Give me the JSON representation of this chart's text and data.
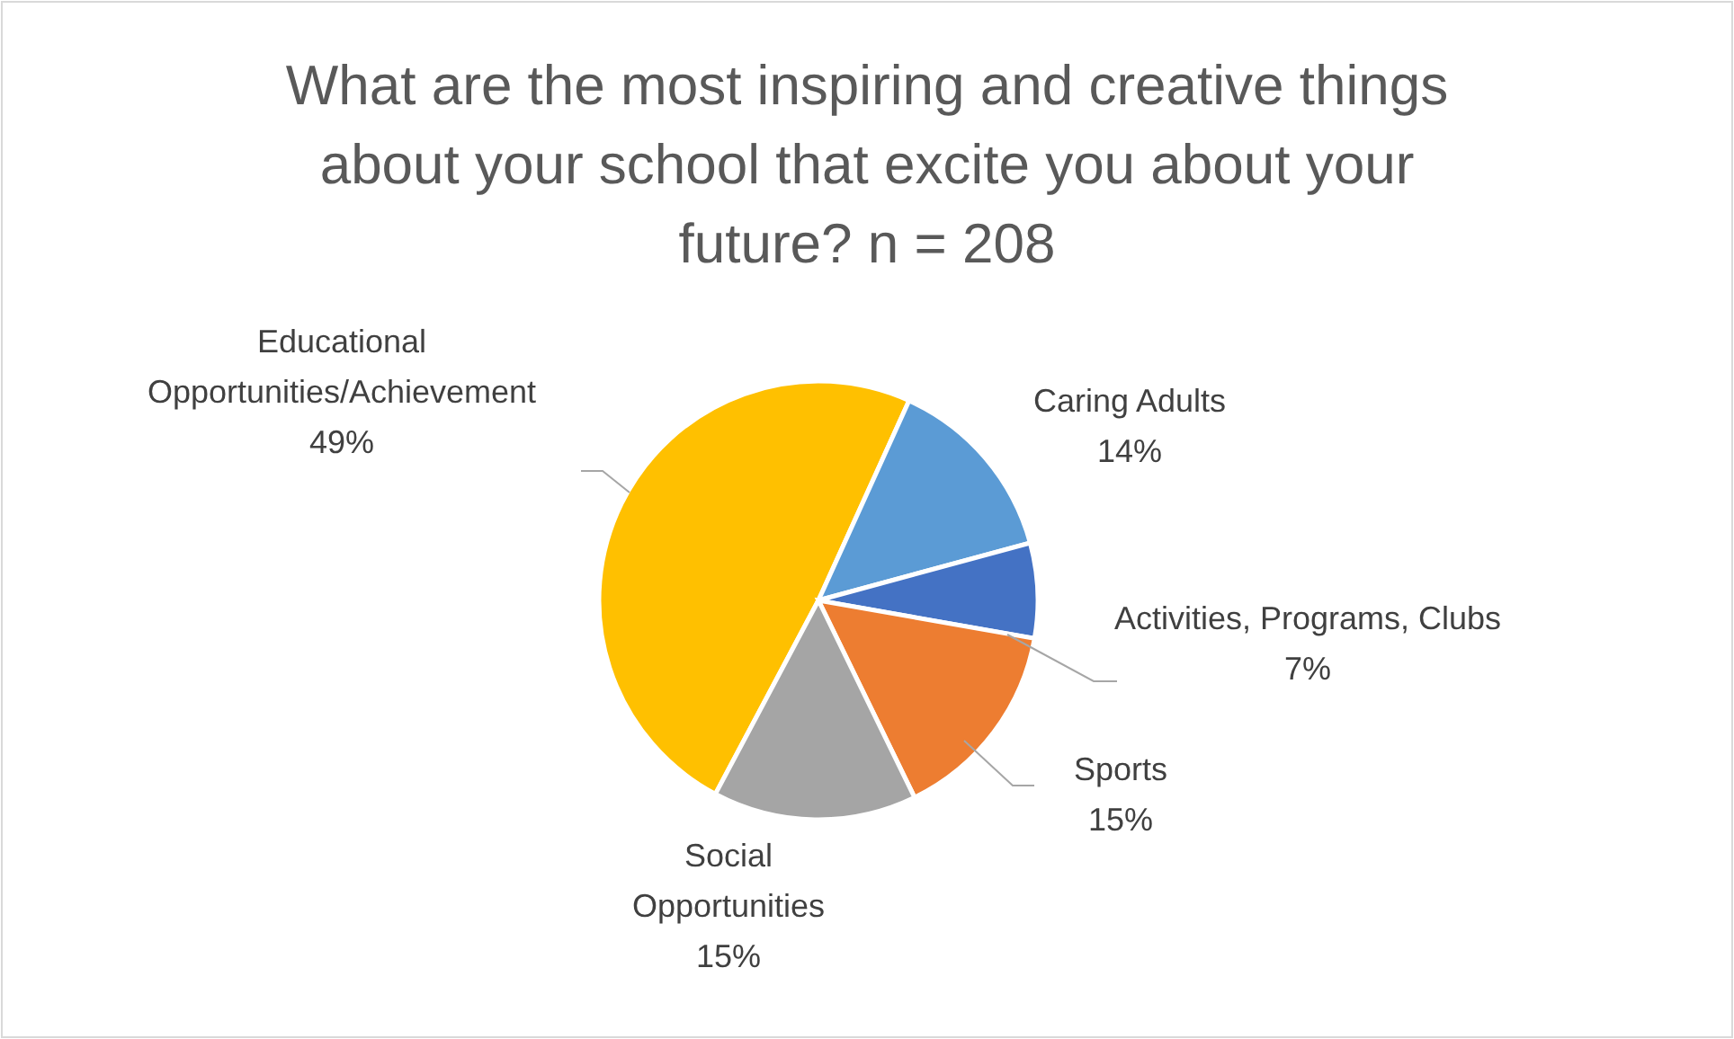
{
  "chart_data": {
    "type": "pie",
    "title": "What are the most inspiring and creative things about your school that excite you about your future? n = 208",
    "categories": [
      "Educational Opportunities/Achievement",
      "Caring Adults",
      "Activities, Programs, Clubs",
      "Sports",
      "Social Opportunities"
    ],
    "values": [
      49,
      14,
      7,
      15,
      15
    ],
    "value_labels": [
      "49%",
      "14%",
      "7%",
      "15%",
      "15%"
    ],
    "colors": [
      "#ffc000",
      "#5b9bd5",
      "#4472c4",
      "#ed7d31",
      "#a5a5a5"
    ]
  }
}
